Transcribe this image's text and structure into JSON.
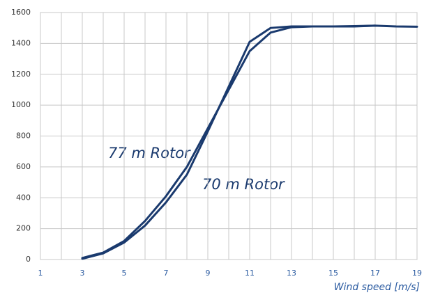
{
  "chart_data": {
    "type": "line",
    "x": [
      3,
      4,
      5,
      6,
      7,
      8,
      9,
      10,
      11,
      12,
      13,
      14,
      15,
      16,
      17,
      18,
      19
    ],
    "series": [
      {
        "name": "77 m Rotor",
        "color": "#1a3a6e",
        "values": [
          10,
          45,
          120,
          250,
          410,
          600,
          850,
          1100,
          1350,
          1470,
          1505,
          1510,
          1510,
          1510,
          1515,
          1510,
          1508
        ]
      },
      {
        "name": "70 m Rotor",
        "color": "#1a3a6e",
        "values": [
          5,
          40,
          110,
          220,
          370,
          550,
          830,
          1120,
          1410,
          1500,
          1510,
          1510,
          1510,
          1512,
          1515,
          null,
          null
        ]
      }
    ],
    "xlabel": "Wind speed [m/s]",
    "xlim": [
      1,
      19
    ],
    "xticks": [
      1,
      3,
      5,
      7,
      9,
      11,
      13,
      15,
      17,
      19
    ],
    "x_minor_ticks": [
      2,
      4,
      6,
      8,
      10,
      12,
      14,
      16,
      18
    ],
    "ylim": [
      0,
      1600
    ],
    "yticks": [
      0,
      200,
      400,
      600,
      800,
      1000,
      1200,
      1400,
      1600
    ],
    "grid": true
  }
}
